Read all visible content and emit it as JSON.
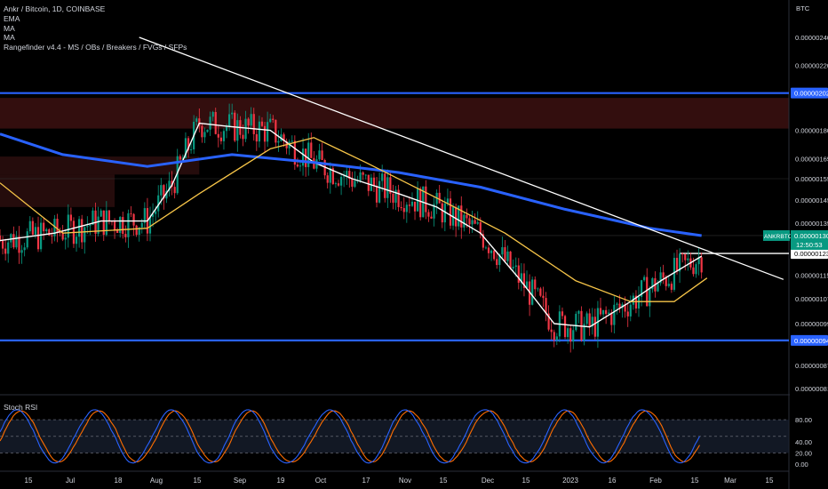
{
  "header": {
    "symbol_line": "Ankr / Bitcoin, 1D, COINBASE",
    "indicators": [
      "EMA",
      "MA",
      "MA",
      "Rangefinder v4.4 - MS / OBs / Breakers / FVGs / SFPs"
    ]
  },
  "currency": "BTC",
  "price_axis": {
    "ticks": [
      "0.00000240",
      "0.00000220",
      "0.00000180",
      "0.00000165",
      "0.00000155",
      "0.00000145",
      "0.00000135",
      "0.00000123",
      "0.00000115",
      "0.00000107",
      "0.00000099",
      "0.00000087",
      "0.00000081"
    ],
    "tick_values": [
      2.4e-06,
      2.2e-06,
      1.8e-06,
      1.65e-06,
      1.55e-06,
      1.45e-06,
      1.35e-06,
      1.23e-06,
      1.15e-06,
      1.07e-06,
      9.9e-07,
      8.7e-07,
      8.1e-07
    ],
    "labels": [
      {
        "text": "0.00000202",
        "value": 2.02e-06,
        "color": "#2962ff",
        "text_color": "#ffffff"
      },
      {
        "text": "0.00000094",
        "value": 9.4e-07,
        "color": "#2962ff",
        "text_color": "#ffffff"
      },
      {
        "text": "0.00000123",
        "value": 1.23e-06,
        "color": "#ffffff",
        "text_color": "#000000"
      }
    ],
    "current": {
      "symbol": "ANKRBTC",
      "price": "0.00000130",
      "countdown": "12:50:53",
      "value": 1.3e-06,
      "color": "#089981"
    }
  },
  "date_axis": [
    "15",
    "Jul",
    "18",
    "Aug",
    "15",
    "Sep",
    "19",
    "Oct",
    "17",
    "Nov",
    "15",
    "Dec",
    "15",
    "2023",
    "16",
    "Feb",
    "15",
    "Mar",
    "15"
  ],
  "rsi": {
    "title": "Stoch RSI",
    "ticks": [
      "80.00",
      "40.00",
      "20.00",
      "0.00"
    ],
    "tick_values": [
      80,
      40,
      20,
      0
    ],
    "band_upper": 80,
    "band_middle": 50,
    "band_lower": 20,
    "k_color": "#2962ff",
    "d_color": "#ff6d00"
  },
  "colors": {
    "background": "#000000",
    "up": "#089981",
    "down": "#f23645",
    "ema": "#ffffff",
    "ma_blue": "#2962ff",
    "ma_yellow": "#f7c548",
    "level": "#2962ff",
    "trendline": "#ffffff",
    "zone": "#5c1a1a",
    "zone2": "#3d1414"
  },
  "chart_data": {
    "type": "candlestick",
    "title": "Ankr / Bitcoin, 1D, COINBASE",
    "ylabel": "BTC",
    "ylim": [
      8e-07,
      2.5e-06
    ],
    "y_scale": "log",
    "x_range": [
      "2022-06-08",
      "2023-03-24"
    ],
    "horizontal_levels": [
      2.02e-06,
      9.4e-07
    ],
    "price_line": 1.23e-06,
    "current_price": 1.3e-06,
    "trendline": [
      [
        "2022-07-29",
        2.4e-06
      ],
      [
        "2023-03-22",
        1.135e-06
      ]
    ],
    "zones": [
      {
        "from": "2022-06-08",
        "to": "2023-03-24",
        "low": 1.81e-06,
        "high": 1.99e-06
      },
      {
        "from": "2022-06-08",
        "to": "2022-07-20",
        "low": 1.42e-06,
        "high": 1.57e-06
      },
      {
        "from": "2022-06-08",
        "to": "2022-08-20",
        "low": 1.57e-06,
        "high": 1.66e-06
      }
    ],
    "series": [
      {
        "name": "EMA",
        "color": "#ffffff",
        "points": [
          [
            "2022-06-08",
            1.28e-06
          ],
          [
            "2022-06-28",
            1.31e-06
          ],
          [
            "2022-07-15",
            1.36e-06
          ],
          [
            "2022-08-01",
            1.36e-06
          ],
          [
            "2022-08-10",
            1.52e-06
          ],
          [
            "2022-08-20",
            1.84e-06
          ],
          [
            "2022-09-01",
            1.82e-06
          ],
          [
            "2022-09-15",
            1.8e-06
          ],
          [
            "2022-10-01",
            1.63e-06
          ],
          [
            "2022-10-15",
            1.55e-06
          ],
          [
            "2022-11-01",
            1.48e-06
          ],
          [
            "2022-11-15",
            1.42e-06
          ],
          [
            "2022-12-01",
            1.31e-06
          ],
          [
            "2022-12-15",
            1.14e-06
          ],
          [
            "2022-12-28",
            9.9e-07
          ],
          [
            "2023-01-10",
            9.8e-07
          ],
          [
            "2023-01-25",
            1.06e-06
          ],
          [
            "2023-02-05",
            1.13e-06
          ],
          [
            "2023-02-20",
            1.22e-06
          ]
        ]
      },
      {
        "name": "MA",
        "color": "#2962ff",
        "points": [
          [
            "2022-06-08",
            1.78e-06
          ],
          [
            "2022-07-01",
            1.67e-06
          ],
          [
            "2022-08-01",
            1.61e-06
          ],
          [
            "2022-09-01",
            1.67e-06
          ],
          [
            "2022-10-01",
            1.63e-06
          ],
          [
            "2022-11-01",
            1.58e-06
          ],
          [
            "2022-12-01",
            1.51e-06
          ],
          [
            "2023-01-01",
            1.41e-06
          ],
          [
            "2023-02-01",
            1.33e-06
          ],
          [
            "2023-02-20",
            1.3e-06
          ]
        ]
      },
      {
        "name": "MA",
        "color": "#f7c548",
        "points": [
          [
            "2022-06-08",
            1.53e-06
          ],
          [
            "2022-07-01",
            1.31e-06
          ],
          [
            "2022-08-01",
            1.33e-06
          ],
          [
            "2022-08-20",
            1.48e-06
          ],
          [
            "2022-09-15",
            1.7e-06
          ],
          [
            "2022-10-01",
            1.76e-06
          ],
          [
            "2022-10-20",
            1.63e-06
          ],
          [
            "2022-11-15",
            1.46e-06
          ],
          [
            "2022-12-10",
            1.31e-06
          ],
          [
            "2023-01-05",
            1.13e-06
          ],
          [
            "2023-01-25",
            1.06e-06
          ],
          [
            "2023-02-10",
            1.06e-06
          ],
          [
            "2023-02-22",
            1.14e-06
          ]
        ]
      }
    ]
  }
}
